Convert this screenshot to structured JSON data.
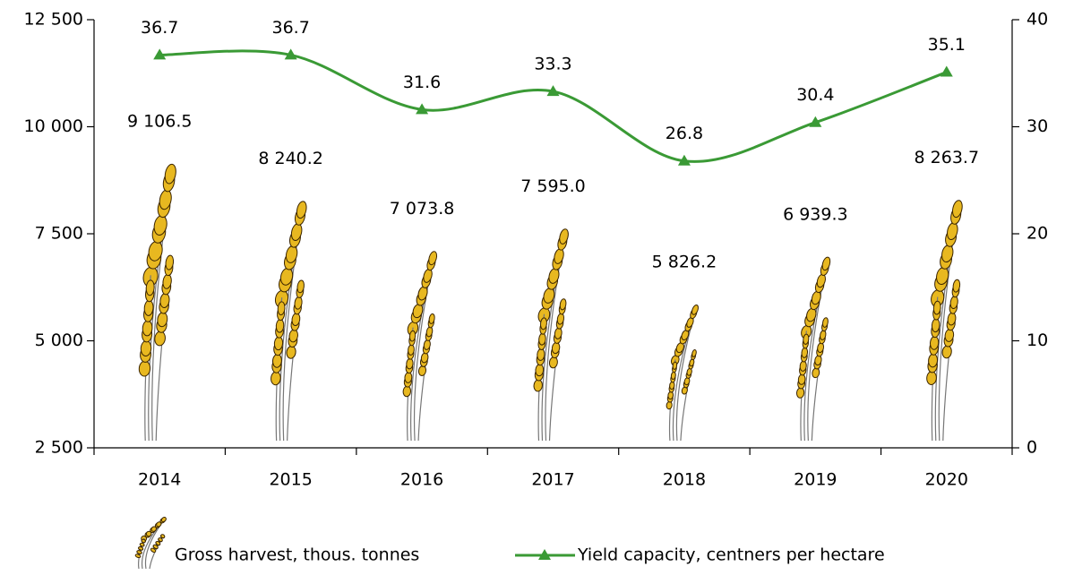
{
  "chart_data": {
    "type": "bar-line",
    "categories": [
      "2014",
      "2015",
      "2016",
      "2017",
      "2018",
      "2019",
      "2020"
    ],
    "series": [
      {
        "name": "Gross harvest, thous. tonnes",
        "type": "bar",
        "color": "#e8b820",
        "values": [
          9106.5,
          8240.2,
          7073.8,
          7595.0,
          5826.2,
          6939.3,
          8263.7
        ],
        "value_labels": [
          "9 106.5",
          "8 240.2",
          "7 073.8",
          "7 595.0",
          "5 826.2",
          "6 939.3",
          "8 263.7"
        ]
      },
      {
        "name": "Yield capacity, centners per hectare",
        "type": "line",
        "axis": "y2",
        "color": "#3a9a35",
        "values": [
          36.7,
          36.7,
          31.6,
          33.3,
          26.8,
          30.4,
          35.1
        ]
      }
    ],
    "ylim": [
      2500,
      12500
    ],
    "yticks": [
      {
        "value": 2500,
        "label": "2 500"
      },
      {
        "value": 5000,
        "label": "5 000"
      },
      {
        "value": 7500,
        "label": "7 500"
      },
      {
        "value": 10000,
        "label": "10 000"
      },
      {
        "value": 12500,
        "label": "12 500"
      }
    ],
    "y2lim": [
      0,
      40
    ],
    "y2ticks": [
      0,
      10,
      20,
      30,
      40
    ],
    "legend": "bottom"
  }
}
